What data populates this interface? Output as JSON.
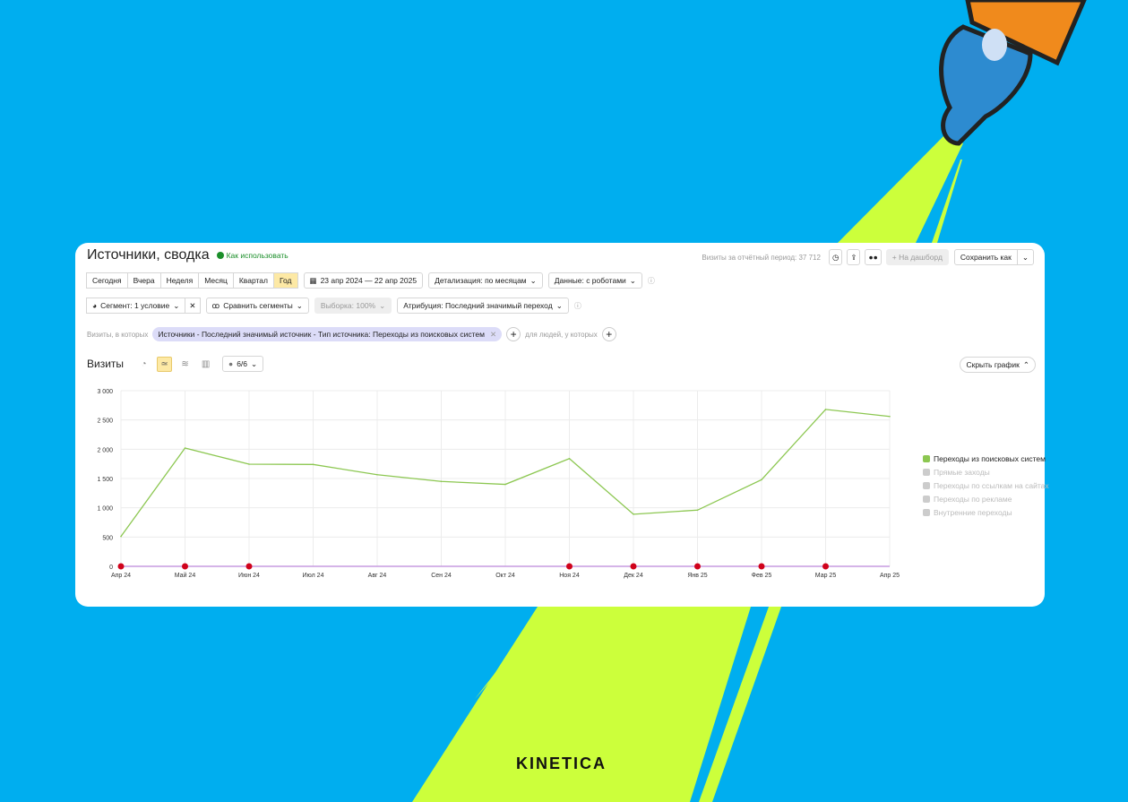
{
  "header": {
    "title": "Источники, сводка",
    "help_link": "Как использовать",
    "visits_total": "Визиты за отчётный период: 37 712",
    "dashboard_label": "+ На дашборд",
    "save_label": "Сохранить как"
  },
  "periods": [
    {
      "label": "Сегодня"
    },
    {
      "label": "Вчера"
    },
    {
      "label": "Неделя"
    },
    {
      "label": "Месяц"
    },
    {
      "label": "Квартал"
    },
    {
      "label": "Год",
      "active": true
    }
  ],
  "date_range": "23 апр 2024 — 22 апр 2025",
  "detail": "Детализация: по месяцам",
  "data_mode": "Данные: с роботами",
  "segment": "Сегмент: 1 условие",
  "compare": "Сравнить сегменты",
  "sample": "Выборка: 100%",
  "attribution": "Атрибуция: Последний значимый переход",
  "filter": {
    "prefix": "Визиты, в которых",
    "chip": "Источники - Последний значимый источник - Тип источника: Переходы из поисковых систем",
    "people": "для людей, у которых"
  },
  "chart_header": {
    "title": "Визиты",
    "series_count": "6/6",
    "hide": "Скрыть график"
  },
  "brand": "KINETICA",
  "chart_data": {
    "type": "line",
    "categories": [
      "Апр 24",
      "Май 24",
      "Июн 24",
      "Июл 24",
      "Авг 24",
      "Сен 24",
      "Окт 24",
      "Ноя 24",
      "Дек 24",
      "Янв 25",
      "Фев 25",
      "Мар 25",
      "Апр 25"
    ],
    "yticks": [
      "0",
      "500",
      "1 000",
      "1 500",
      "2 000",
      "2 500",
      "3 000"
    ],
    "ylim": [
      0,
      3000
    ],
    "grid": true,
    "legend": "right",
    "series": [
      {
        "name": "Переходы из поисковых систем",
        "values": [
          510,
          2020,
          1745,
          1740,
          1565,
          1450,
          1400,
          1840,
          890,
          960,
          1480,
          2680,
          2560
        ],
        "color": "#8cc751",
        "enabled": true
      },
      {
        "name": "Прямые заходы",
        "enabled": false
      },
      {
        "name": "Переходы по ссылкам на сайтах",
        "enabled": false
      },
      {
        "name": "Переходы по рекламе",
        "enabled": false
      },
      {
        "name": "Внутренние переходы",
        "enabled": false
      }
    ],
    "annotations": [
      0,
      1,
      2,
      7,
      8,
      9,
      10,
      11
    ]
  }
}
